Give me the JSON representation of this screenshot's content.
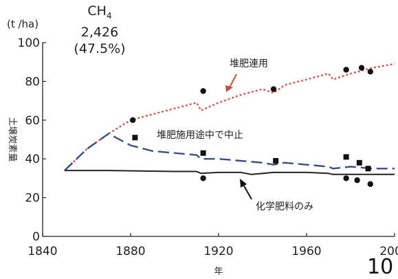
{
  "overlay": {
    "formula_main": "CH",
    "formula_sub": "4",
    "value": "2,426",
    "percent": "(47.5%)",
    "corner_number": "10"
  },
  "chart_data": {
    "type": "line",
    "yunit": "(t /ha)",
    "ylabel": "土壌炭素量",
    "xlabel": "年",
    "xlim": [
      1840,
      2000
    ],
    "ylim": [
      0,
      100
    ],
    "xticks": [
      1840,
      1880,
      1920,
      1960,
      2000
    ],
    "yticks": [
      0,
      20,
      40,
      60,
      80,
      100
    ],
    "series": [
      {
        "name": "堆肥連用",
        "color": "#d8565c",
        "dash": "dotted",
        "x": [
          1850,
          1860,
          1870,
          1880,
          1890,
          1900,
          1910,
          1912,
          1920,
          1930,
          1940,
          1945,
          1950,
          1960,
          1970,
          1972,
          1980,
          1990,
          2000
        ],
        "y": [
          34,
          45,
          53,
          60,
          63,
          66,
          69,
          65,
          69,
          73,
          76,
          74,
          78,
          81,
          84,
          81,
          84,
          87,
          89
        ]
      },
      {
        "name": "堆肥施用途中で中止",
        "color": "#3a4e86",
        "dash": "dashed",
        "x": [
          1850,
          1860,
          1870,
          1880,
          1890,
          1900,
          1910,
          1912,
          1920,
          1930,
          1940,
          1945,
          1950,
          1960,
          1970,
          1972,
          1980,
          1990,
          2000
        ],
        "y": [
          34,
          45,
          53,
          47,
          44,
          43,
          42,
          40,
          40,
          39,
          38,
          37,
          38,
          37,
          36,
          35,
          36,
          35,
          35
        ]
      },
      {
        "name": "化学肥料のみ",
        "color": "#222222",
        "dash": "solid",
        "x": [
          1850,
          1870,
          1900,
          1910,
          1912,
          1920,
          1930,
          1935,
          1945,
          1960,
          1970,
          1972,
          1990,
          2000
        ],
        "y": [
          34,
          34,
          33.5,
          33.5,
          32.5,
          33,
          33,
          32,
          33,
          33,
          32.5,
          32,
          32,
          32
        ]
      }
    ],
    "observed": [
      {
        "name": "堆肥連用",
        "marker": "circle",
        "points": [
          [
            1881,
            60
          ],
          [
            1913,
            75
          ],
          [
            1945,
            76
          ],
          [
            1978,
            86
          ],
          [
            1985,
            87
          ],
          [
            1989,
            85
          ]
        ]
      },
      {
        "name": "堆肥施用途中で中止",
        "marker": "square",
        "points": [
          [
            1882,
            51
          ],
          [
            1913,
            43
          ],
          [
            1946,
            39
          ],
          [
            1978,
            41
          ],
          [
            1984,
            38
          ],
          [
            1988,
            35
          ]
        ]
      },
      {
        "name": "化学肥料のみ",
        "marker": "circle",
        "points": [
          [
            1913,
            30
          ],
          [
            1978,
            30
          ],
          [
            1983,
            29
          ],
          [
            1989,
            27
          ]
        ]
      }
    ],
    "annotations": [
      {
        "text": "堆肥連用",
        "target_series": "堆肥連用"
      },
      {
        "text": "堆肥施用途中で中止",
        "target_series": "堆肥施用途中で中止"
      },
      {
        "text": "化学肥料のみ",
        "target_series": "化学肥料のみ"
      }
    ]
  }
}
